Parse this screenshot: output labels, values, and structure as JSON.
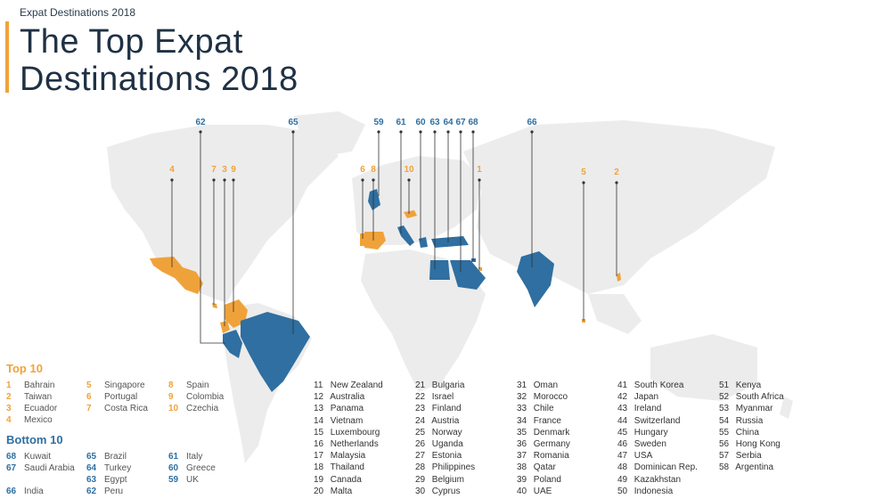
{
  "header": {
    "kicker": "Expat Destinations 2018",
    "title_line1": "The Top Expat",
    "title_line2": "Destinations 2018"
  },
  "colors": {
    "top": "#f0a23a",
    "bottom": "#2f6fa1",
    "land": "#ececec",
    "accent": "#f0a23a"
  },
  "chart_data": {
    "type": "table",
    "top_label": "Top 10",
    "bottom_label": "Bottom 10",
    "top10": [
      {
        "rank": "1",
        "name": "Bahrain"
      },
      {
        "rank": "2",
        "name": "Taiwan"
      },
      {
        "rank": "3",
        "name": "Ecuador"
      },
      {
        "rank": "4",
        "name": "Mexico"
      },
      {
        "rank": "5",
        "name": "Singapore"
      },
      {
        "rank": "6",
        "name": "Portugal"
      },
      {
        "rank": "7",
        "name": "Costa Rica"
      },
      {
        "rank": "8",
        "name": "Spain"
      },
      {
        "rank": "9",
        "name": "Colombia"
      },
      {
        "rank": "10",
        "name": "Czechia"
      }
    ],
    "bottom10": [
      {
        "rank": "68",
        "name": "Kuwait"
      },
      {
        "rank": "67",
        "name": "Saudi Arabia"
      },
      {
        "rank": "66",
        "name": "India"
      },
      {
        "rank": "65",
        "name": "Brazil"
      },
      {
        "rank": "64",
        "name": "Turkey"
      },
      {
        "rank": "63",
        "name": "Egypt"
      },
      {
        "rank": "62",
        "name": "Peru"
      },
      {
        "rank": "61",
        "name": "Italy"
      },
      {
        "rank": "60",
        "name": "Greece"
      },
      {
        "rank": "59",
        "name": "UK"
      }
    ],
    "middle": [
      {
        "rank": "11",
        "name": "New Zealand"
      },
      {
        "rank": "12",
        "name": "Australia"
      },
      {
        "rank": "13",
        "name": "Panama"
      },
      {
        "rank": "14",
        "name": "Vietnam"
      },
      {
        "rank": "15",
        "name": "Luxembourg"
      },
      {
        "rank": "16",
        "name": "Netherlands"
      },
      {
        "rank": "17",
        "name": "Malaysia"
      },
      {
        "rank": "18",
        "name": "Thailand"
      },
      {
        "rank": "19",
        "name": "Canada"
      },
      {
        "rank": "20",
        "name": "Malta"
      },
      {
        "rank": "21",
        "name": "Bulgaria"
      },
      {
        "rank": "22",
        "name": "Israel"
      },
      {
        "rank": "23",
        "name": "Finland"
      },
      {
        "rank": "24",
        "name": "Austria"
      },
      {
        "rank": "25",
        "name": "Norway"
      },
      {
        "rank": "26",
        "name": "Uganda"
      },
      {
        "rank": "27",
        "name": "Estonia"
      },
      {
        "rank": "28",
        "name": "Philippines"
      },
      {
        "rank": "29",
        "name": "Belgium"
      },
      {
        "rank": "30",
        "name": "Cyprus"
      },
      {
        "rank": "31",
        "name": "Oman"
      },
      {
        "rank": "32",
        "name": "Morocco"
      },
      {
        "rank": "33",
        "name": "Chile"
      },
      {
        "rank": "34",
        "name": "France"
      },
      {
        "rank": "35",
        "name": "Denmark"
      },
      {
        "rank": "36",
        "name": "Germany"
      },
      {
        "rank": "37",
        "name": "Romania"
      },
      {
        "rank": "38",
        "name": "Qatar"
      },
      {
        "rank": "39",
        "name": "Poland"
      },
      {
        "rank": "40",
        "name": "UAE"
      },
      {
        "rank": "41",
        "name": "South Korea"
      },
      {
        "rank": "42",
        "name": "Japan"
      },
      {
        "rank": "43",
        "name": "Ireland"
      },
      {
        "rank": "44",
        "name": "Switzerland"
      },
      {
        "rank": "45",
        "name": "Hungary"
      },
      {
        "rank": "46",
        "name": "Sweden"
      },
      {
        "rank": "47",
        "name": "USA"
      },
      {
        "rank": "48",
        "name": "Dominican Rep."
      },
      {
        "rank": "49",
        "name": "Kazakhstan"
      },
      {
        "rank": "50",
        "name": "Indonesia"
      },
      {
        "rank": "51",
        "name": "Kenya"
      },
      {
        "rank": "52",
        "name": "South Africa"
      },
      {
        "rank": "53",
        "name": "Myanmar"
      },
      {
        "rank": "54",
        "name": "Russia"
      },
      {
        "rank": "55",
        "name": "China"
      },
      {
        "rank": "56",
        "name": "Hong Kong"
      },
      {
        "rank": "57",
        "name": "Serbia"
      },
      {
        "rank": "58",
        "name": "Argentina"
      }
    ],
    "map_callouts": [
      {
        "rank": "62",
        "group": "bottom"
      },
      {
        "rank": "65",
        "group": "bottom"
      },
      {
        "rank": "59",
        "group": "bottom"
      },
      {
        "rank": "61",
        "group": "bottom"
      },
      {
        "rank": "60",
        "group": "bottom"
      },
      {
        "rank": "63",
        "group": "bottom"
      },
      {
        "rank": "64",
        "group": "bottom"
      },
      {
        "rank": "67",
        "group": "bottom"
      },
      {
        "rank": "68",
        "group": "bottom"
      },
      {
        "rank": "66",
        "group": "bottom"
      },
      {
        "rank": "4",
        "group": "top"
      },
      {
        "rank": "7",
        "group": "top"
      },
      {
        "rank": "3",
        "group": "top"
      },
      {
        "rank": "9",
        "group": "top"
      },
      {
        "rank": "6",
        "group": "top"
      },
      {
        "rank": "8",
        "group": "top"
      },
      {
        "rank": "10",
        "group": "top"
      },
      {
        "rank": "1",
        "group": "top"
      },
      {
        "rank": "5",
        "group": "top"
      },
      {
        "rank": "2",
        "group": "top"
      }
    ]
  }
}
